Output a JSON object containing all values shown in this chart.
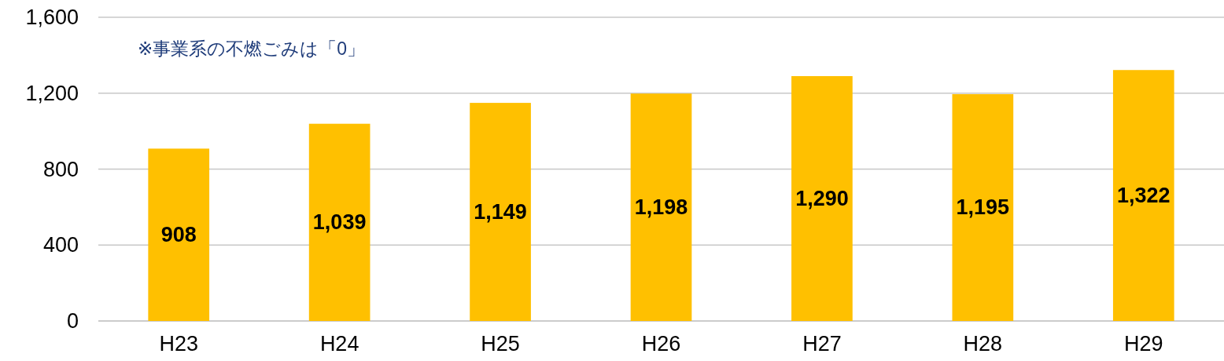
{
  "chart_data": {
    "type": "bar",
    "categories": [
      "H23",
      "H24",
      "H25",
      "H26",
      "H27",
      "H28",
      "H29"
    ],
    "values": [
      908,
      1039,
      1149,
      1198,
      1290,
      1195,
      1322
    ],
    "color": "#ffc000",
    "ylim": [
      0,
      1600
    ],
    "yticks": [
      {
        "value": 0,
        "label": "0"
      },
      {
        "value": 400,
        "label": "400"
      },
      {
        "value": 800,
        "label": "800"
      },
      {
        "value": 1200,
        "label": "1,200"
      },
      {
        "value": 1600,
        "label": "1,600"
      }
    ],
    "grid": "y",
    "data_labels": true,
    "value_labels": [
      "908",
      "1,039",
      "1,149",
      "1,198",
      "1,290",
      "1,195",
      "1,322"
    ],
    "annotations": [
      "※事業系の不燃ごみは「0」"
    ]
  }
}
